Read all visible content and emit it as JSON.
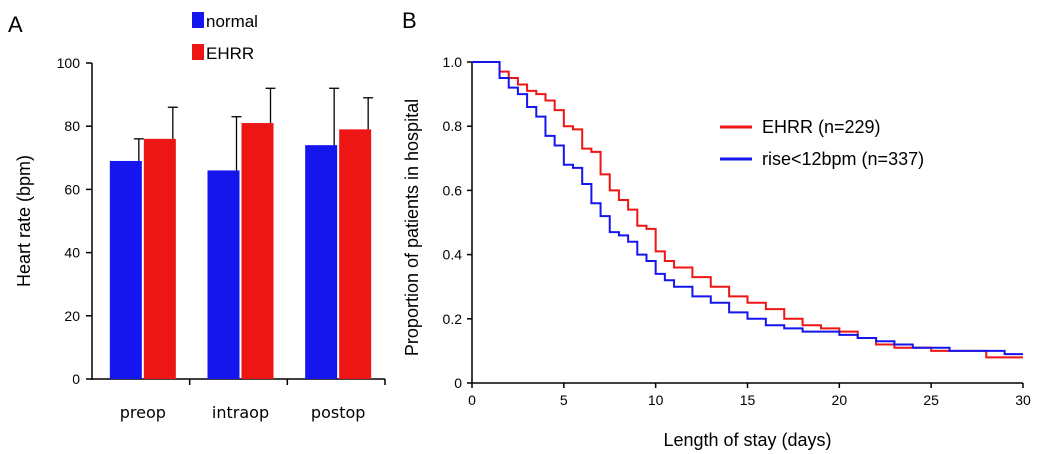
{
  "chart_data": [
    {
      "type": "bar",
      "panel": "A",
      "categories": [
        "preop",
        "intraop",
        "postop"
      ],
      "series": [
        {
          "name": "normal",
          "color": "#1515ee",
          "values": [
            69,
            66,
            74
          ],
          "errors": [
            7,
            17,
            18
          ]
        },
        {
          "name": "EHRR",
          "color": "#ee1515",
          "values": [
            76,
            81,
            79
          ],
          "errors": [
            10,
            11,
            10
          ]
        }
      ],
      "ylabel": "Heart rate (bpm)",
      "ylim": [
        0,
        100
      ],
      "yticks": [
        "0",
        "20",
        "40",
        "60",
        "80",
        "100"
      ],
      "legend_position": "top-center",
      "grid": false
    },
    {
      "type": "line",
      "subtype": "step",
      "panel": "B",
      "xlabel": "Length of stay (days)",
      "ylabel": "Proportion of patients in hospital",
      "xlim": [
        0,
        30
      ],
      "ylim": [
        0,
        1.0
      ],
      "xticks": [
        "0",
        "5",
        "10",
        "15",
        "20",
        "25",
        "30"
      ],
      "yticks": [
        "0",
        "0.2",
        "0.4",
        "0.6",
        "0.8",
        "1.0"
      ],
      "legend_position": "upper-right",
      "grid": false,
      "series": [
        {
          "name": "EHRR (n=229)",
          "color": "#ee1515",
          "x": [
            0,
            1,
            1.5,
            2,
            2.5,
            3,
            3.5,
            4,
            4.5,
            5,
            5.5,
            6,
            6.5,
            7,
            7.5,
            8,
            8.5,
            9,
            9.5,
            10,
            10.5,
            11,
            12,
            13,
            14,
            15,
            16,
            17,
            18,
            19,
            20,
            21,
            22,
            23,
            24,
            25,
            26,
            27,
            28,
            29,
            30
          ],
          "y": [
            1.0,
            1.0,
            0.97,
            0.95,
            0.93,
            0.91,
            0.9,
            0.88,
            0.85,
            0.8,
            0.79,
            0.73,
            0.72,
            0.65,
            0.6,
            0.57,
            0.54,
            0.49,
            0.48,
            0.41,
            0.38,
            0.36,
            0.33,
            0.3,
            0.27,
            0.25,
            0.23,
            0.2,
            0.18,
            0.17,
            0.16,
            0.14,
            0.12,
            0.11,
            0.11,
            0.1,
            0.1,
            0.1,
            0.08,
            0.08,
            0.08
          ]
        },
        {
          "name": "rise<12bpm (n=337)",
          "color": "#1515ee",
          "x": [
            0,
            1,
            1.5,
            2,
            2.5,
            3,
            3.5,
            4,
            4.5,
            5,
            5.5,
            6,
            6.5,
            7,
            7.5,
            8,
            8.5,
            9,
            9.5,
            10,
            10.5,
            11,
            12,
            13,
            14,
            15,
            16,
            17,
            18,
            19,
            20,
            21,
            22,
            23,
            24,
            25,
            26,
            27,
            28,
            29,
            30
          ],
          "y": [
            1.0,
            1.0,
            0.95,
            0.92,
            0.9,
            0.86,
            0.83,
            0.77,
            0.74,
            0.68,
            0.67,
            0.62,
            0.56,
            0.52,
            0.47,
            0.46,
            0.44,
            0.4,
            0.38,
            0.34,
            0.32,
            0.3,
            0.27,
            0.25,
            0.22,
            0.2,
            0.18,
            0.17,
            0.16,
            0.16,
            0.15,
            0.14,
            0.13,
            0.12,
            0.11,
            0.11,
            0.1,
            0.1,
            0.1,
            0.09,
            0.09
          ]
        }
      ]
    }
  ]
}
